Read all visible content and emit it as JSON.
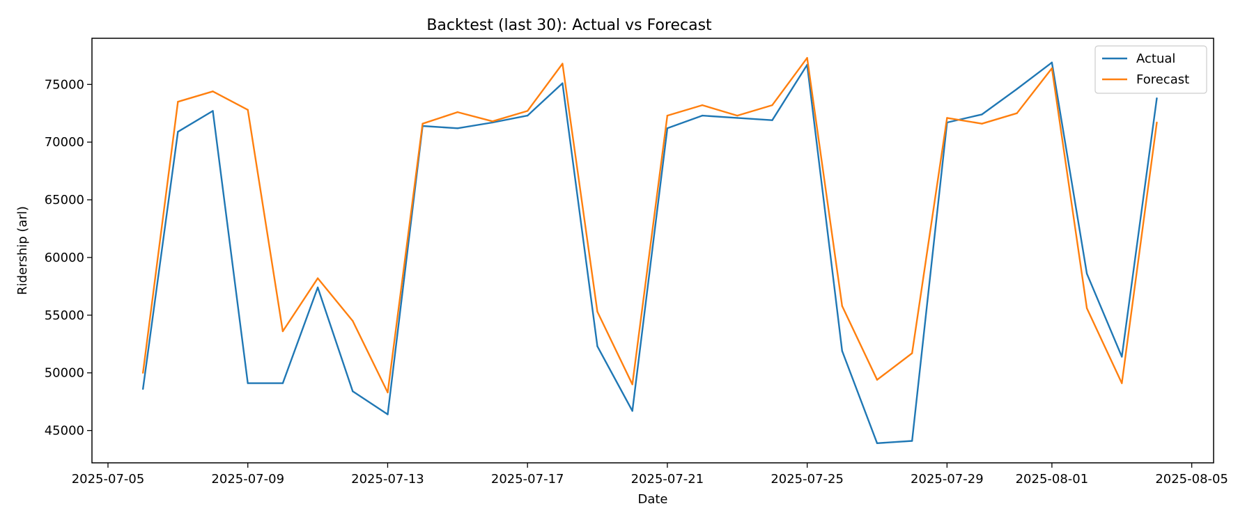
{
  "chart_data": {
    "type": "line",
    "title": "Backtest (last 30): Actual vs Forecast",
    "xlabel": "Date",
    "ylabel": "Ridership (arl)",
    "x_tick_labels": [
      "2025-07-05",
      "2025-07-09",
      "2025-07-13",
      "2025-07-17",
      "2025-07-21",
      "2025-07-25",
      "2025-07-29",
      "2025-08-01",
      "2025-08-05"
    ],
    "y_tick_labels": [
      "45000",
      "50000",
      "55000",
      "60000",
      "65000",
      "70000",
      "75000"
    ],
    "ylim": [
      42200,
      79000
    ],
    "xlim": [
      "2025-07-04T13:00",
      "2025-08-05T15:00"
    ],
    "grid": false,
    "legend_position": "top-right",
    "x": [
      "2025-07-06",
      "2025-07-07",
      "2025-07-08",
      "2025-07-09",
      "2025-07-10",
      "2025-07-11",
      "2025-07-12",
      "2025-07-13",
      "2025-07-14",
      "2025-07-15",
      "2025-07-16",
      "2025-07-17",
      "2025-07-18",
      "2025-07-19",
      "2025-07-20",
      "2025-07-21",
      "2025-07-22",
      "2025-07-23",
      "2025-07-24",
      "2025-07-25",
      "2025-07-26",
      "2025-07-27",
      "2025-07-28",
      "2025-07-29",
      "2025-07-30",
      "2025-07-31",
      "2025-08-01",
      "2025-08-02",
      "2025-08-03",
      "2025-08-04"
    ],
    "series": [
      {
        "name": "Actual",
        "color": "#1f77b4",
        "values": [
          48600,
          70900,
          72700,
          49100,
          49100,
          57400,
          48400,
          46400,
          71400,
          71200,
          71700,
          72300,
          75100,
          52300,
          46700,
          71200,
          72300,
          72100,
          71900,
          76700,
          51900,
          43900,
          44100,
          71700,
          72400,
          74600,
          76900,
          58600,
          51400,
          73800
        ]
      },
      {
        "name": "Forecast",
        "color": "#ff7f0e",
        "values": [
          50000,
          73500,
          74400,
          72800,
          53600,
          58200,
          54500,
          48300,
          71600,
          72600,
          71800,
          72700,
          76800,
          55300,
          49000,
          72300,
          73200,
          72300,
          73200,
          77300,
          55800,
          49400,
          51700,
          72100,
          71600,
          72500,
          76400,
          55600,
          49100,
          71700
        ]
      }
    ]
  }
}
